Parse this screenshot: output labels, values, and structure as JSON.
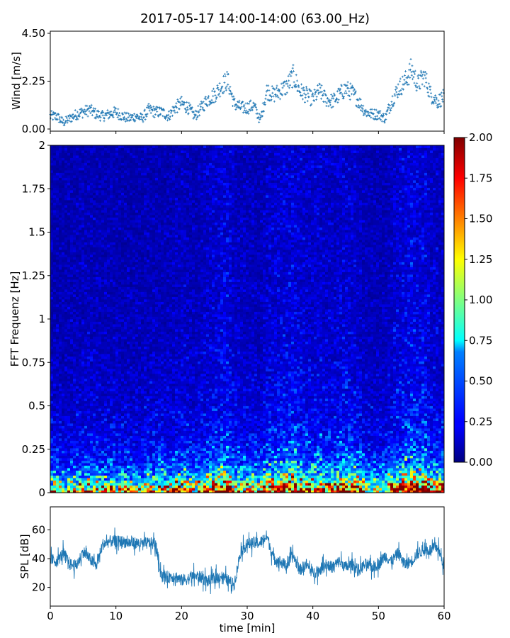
{
  "chart_data": [
    {
      "type": "scatter",
      "panel": "wind",
      "title": "2017-05-17 14:00-14:00 (63.00_Hz)",
      "ylabel": "Wind [m/s]",
      "xlim": [
        0,
        60
      ],
      "ylim": [
        -0.1,
        4.6
      ],
      "yticks": [
        "0.00",
        "2.25",
        "4.50"
      ],
      "marker_color": "#1f77b4",
      "series": [
        {
          "x": [
            0,
            1,
            2,
            3,
            4,
            5,
            6,
            7,
            8,
            9,
            10,
            11,
            12,
            13,
            14,
            15,
            16,
            17,
            18,
            19,
            20,
            21,
            22,
            23,
            24,
            25,
            26,
            27,
            28,
            29,
            30,
            31,
            32,
            33,
            34,
            35,
            36,
            37,
            38,
            39,
            40,
            41,
            42,
            43,
            44,
            45,
            46,
            47,
            48,
            49,
            50,
            51,
            52,
            53,
            54,
            55,
            56,
            57,
            58,
            59,
            60
          ],
          "values": [
            0.6,
            0.6,
            0.3,
            0.5,
            0.7,
            0.8,
            0.9,
            0.7,
            0.6,
            0.7,
            0.8,
            0.6,
            0.5,
            0.6,
            0.5,
            0.9,
            0.8,
            0.8,
            0.6,
            1.0,
            1.2,
            1.0,
            0.6,
            1.0,
            1.4,
            1.6,
            2.0,
            2.3,
            1.2,
            1.0,
            1.0,
            1.1,
            0.4,
            1.8,
            1.6,
            1.8,
            2.0,
            2.5,
            1.8,
            1.6,
            1.4,
            1.8,
            1.4,
            1.3,
            1.6,
            1.9,
            1.7,
            1.3,
            0.8,
            0.7,
            0.7,
            0.5,
            1.3,
            1.9,
            2.2,
            2.8,
            2.1,
            2.5,
            1.6,
            1.3,
            1.5
          ]
        }
      ]
    },
    {
      "type": "heatmap",
      "panel": "spectrogram",
      "ylabel": "FFT Frequenz [Hz]",
      "xlim": [
        0,
        60
      ],
      "ylim": [
        0,
        2
      ],
      "yticks": [
        "0",
        "0.25",
        "0.5",
        "0.75",
        "1",
        "1.25",
        "1.5",
        "1.75",
        "2"
      ],
      "colormap": "jet",
      "colorbar_range": [
        0,
        2
      ],
      "colorbar_ticks": [
        "0.00",
        "0.25",
        "0.50",
        "0.75",
        "1.00",
        "1.25",
        "1.50",
        "1.75",
        "2.00"
      ]
    },
    {
      "type": "line",
      "panel": "spl",
      "xlabel": "time [min]",
      "ylabel": "SPL [dB]",
      "xlim": [
        0,
        60
      ],
      "ylim": [
        7,
        76
      ],
      "xticks": [
        "0",
        "10",
        "20",
        "30",
        "40",
        "50",
        "60"
      ],
      "yticks": [
        "20",
        "40",
        "60"
      ],
      "line_color": "#1f77b4",
      "series": [
        {
          "x": [
            0,
            1,
            2,
            3,
            4,
            5,
            6,
            7,
            8,
            9,
            10,
            11,
            12,
            13,
            14,
            15,
            16,
            17,
            18,
            19,
            20,
            21,
            22,
            23,
            24,
            25,
            26,
            27,
            28,
            29,
            30,
            31,
            32,
            33,
            34,
            35,
            36,
            37,
            38,
            39,
            40,
            41,
            42,
            43,
            44,
            45,
            46,
            47,
            48,
            49,
            50,
            51,
            52,
            53,
            54,
            55,
            56,
            57,
            58,
            59,
            60
          ],
          "values": [
            40,
            38,
            44,
            36,
            35,
            45,
            40,
            35,
            50,
            52,
            52,
            52,
            51,
            51,
            50,
            51,
            50,
            28,
            27,
            28,
            25,
            26,
            28,
            27,
            24,
            26,
            28,
            25,
            22,
            45,
            50,
            51,
            51,
            56,
            40,
            38,
            35,
            42,
            32,
            36,
            30,
            32,
            36,
            34,
            38,
            34,
            36,
            32,
            36,
            34,
            36,
            42,
            38,
            44,
            36,
            38,
            44,
            46,
            46,
            48,
            35
          ]
        }
      ]
    }
  ]
}
